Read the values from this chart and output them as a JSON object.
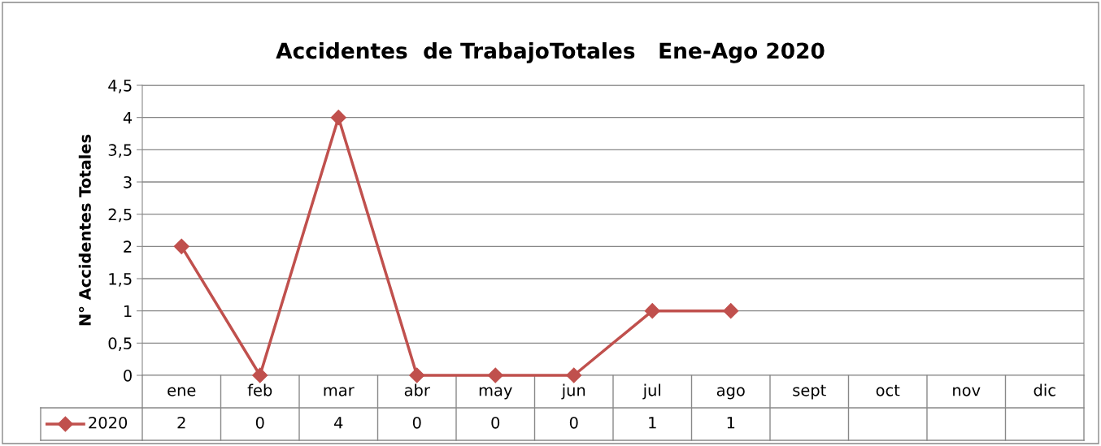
{
  "chart_data": {
    "type": "line",
    "title": "Accidentes  de TrabajoTotales   Ene-Ago 2020",
    "ylabel": "N° Accidentes Totales",
    "categories": [
      "ene",
      "feb",
      "mar",
      "abr",
      "may",
      "jun",
      "jul",
      "ago",
      "sept",
      "oct",
      "nov",
      "dic"
    ],
    "series": [
      {
        "name": "2020",
        "color": "#c0504d",
        "values": [
          2,
          0,
          4,
          0,
          0,
          0,
          1,
          1,
          null,
          null,
          null,
          null
        ]
      }
    ],
    "ylim": [
      0,
      4.5
    ],
    "yticks": [
      0,
      {
        "value": 0.5,
        "label": "0,5"
      },
      1,
      {
        "value": 1.5,
        "label": "1,5"
      },
      2,
      {
        "value": 2.5,
        "label": "2,5"
      },
      3,
      {
        "value": 3.5,
        "label": "3,5"
      },
      4,
      {
        "value": 4.5,
        "label": "4,5"
      }
    ],
    "grid": "y",
    "marker": "diamond",
    "line_style": "solid",
    "data_labels": true
  }
}
